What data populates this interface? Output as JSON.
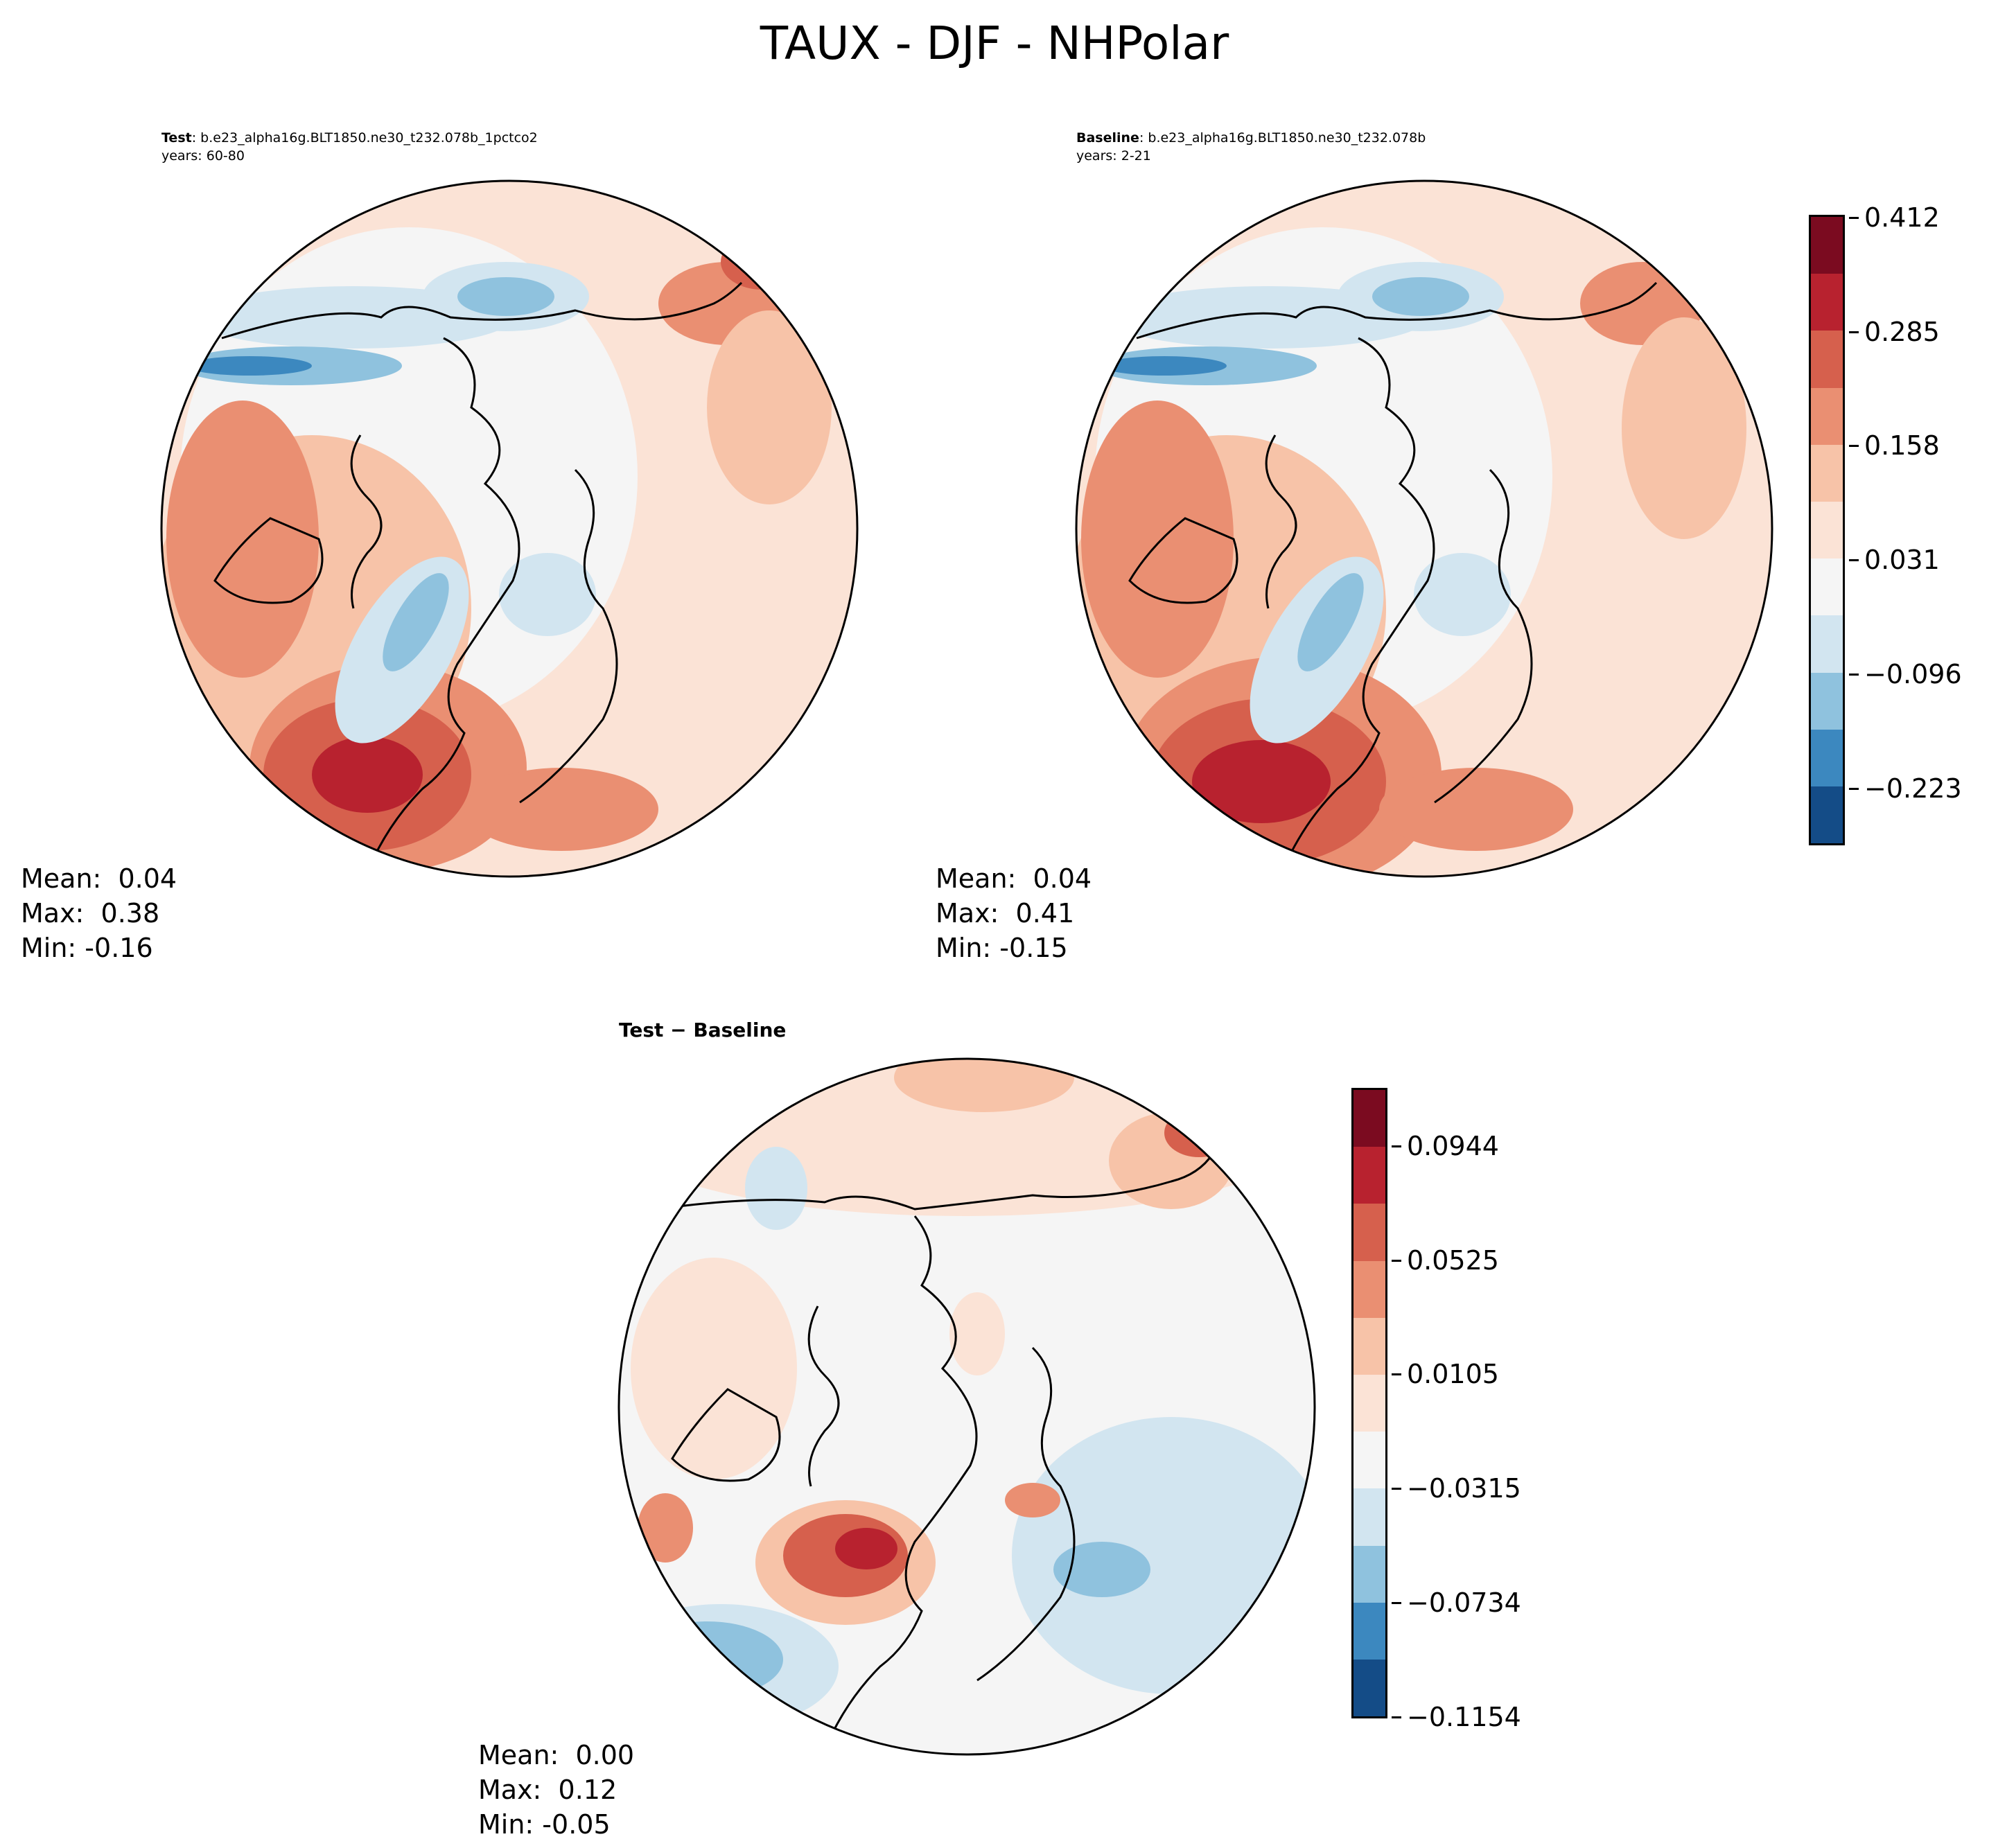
{
  "figure_title": "TAUX - DJF - NHPolar",
  "panels": {
    "test": {
      "label": "Test",
      "case": ": b.e23_alpha16g.BLT1850.ne30_t232.078b_1pctco2",
      "years": "years: 60-80",
      "mean": "Mean:  0.04",
      "max": "Max:  0.38",
      "min": "Min: -0.16"
    },
    "baseline": {
      "label": "Baseline",
      "case": ": b.e23_alpha16g.BLT1850.ne30_t232.078b",
      "years": "years: 2-21",
      "mean": "Mean:  0.04",
      "max": "Max:  0.41",
      "min": "Min: -0.15"
    },
    "diff": {
      "title": "Test − Baseline",
      "mean": "Mean:  0.00",
      "max": "Max:  0.12",
      "min": "Min: -0.05"
    }
  },
  "chart_data": [
    {
      "type": "heatmap",
      "name": "Test",
      "projection": "NH polar stereographic",
      "colorbar_ticks": [
        "0.412",
        "0.285",
        "0.158",
        "0.031",
        "−0.096",
        "−0.223"
      ],
      "colorbar_range": [
        -0.2865,
        0.412
      ]
    },
    {
      "type": "heatmap",
      "name": "Baseline",
      "projection": "NH polar stereographic",
      "colorbar_ticks": [
        "0.412",
        "0.285",
        "0.158",
        "0.031",
        "−0.096",
        "−0.223"
      ],
      "colorbar_range": [
        -0.2865,
        0.412
      ]
    },
    {
      "type": "heatmap",
      "name": "Test - Baseline",
      "projection": "NH polar stereographic",
      "colorbar_ticks": [
        "0.0944",
        "0.0525",
        "0.0105",
        "−0.0315",
        "−0.0734",
        "−0.1154"
      ],
      "colorbar_range": [
        -0.1154,
        0.1154
      ]
    }
  ],
  "colormap": [
    "#7b0b20",
    "#b8222f",
    "#d6604d",
    "#ea8f72",
    "#f7c3a8",
    "#fbe3d6",
    "#f5f5f5",
    "#d2e5f0",
    "#8fc2de",
    "#3c88bf",
    "#144c87"
  ]
}
